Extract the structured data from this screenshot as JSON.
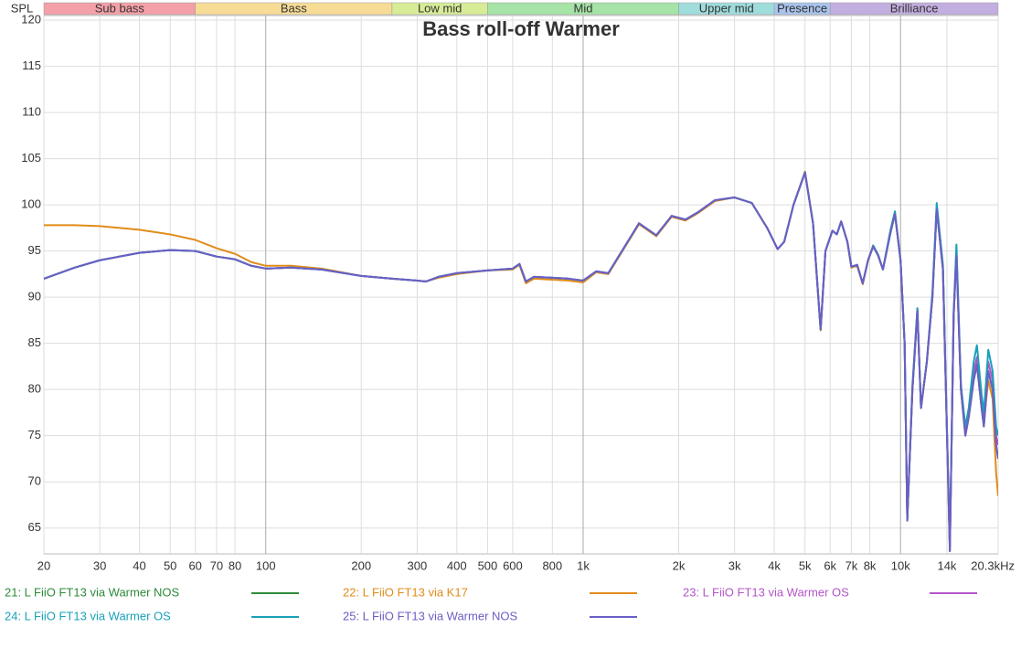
{
  "chart_data": {
    "type": "line",
    "title": "Bass roll-off Warmer",
    "y_label": "SPL",
    "xscale": "log",
    "xlim": [
      20,
      20300
    ],
    "ylim": [
      62.2,
      120.5
    ],
    "xticks": [
      20,
      30,
      40,
      50,
      60,
      70,
      80,
      100,
      200,
      300,
      400,
      500,
      600,
      800,
      {
        "value": 1000,
        "label": "1k"
      },
      {
        "value": 2000,
        "label": "2k"
      },
      {
        "value": 3000,
        "label": "3k"
      },
      {
        "value": 4000,
        "label": "4k"
      },
      {
        "value": 5000,
        "label": "5k"
      },
      {
        "value": 6000,
        "label": "6k"
      },
      {
        "value": 7000,
        "label": "7k"
      },
      {
        "value": 8000,
        "label": "8k"
      },
      {
        "value": 10000,
        "label": "10k"
      },
      {
        "value": 14000,
        "label": "14k"
      },
      {
        "value": 20300,
        "label": "20.3kHz"
      }
    ],
    "yticks": [
      65,
      70,
      75,
      80,
      85,
      90,
      95,
      100,
      105,
      110,
      115,
      120
    ],
    "grid": true,
    "bands": [
      {
        "label": "Sub bass",
        "from": 20,
        "to": 60,
        "color": "#f4a0a8"
      },
      {
        "label": "Bass",
        "from": 60,
        "to": 250,
        "color": "#f7dc96"
      },
      {
        "label": "Low mid",
        "from": 250,
        "to": 500,
        "color": "#d8ec98"
      },
      {
        "label": "Mid",
        "from": 500,
        "to": 2000,
        "color": "#a6e3a6"
      },
      {
        "label": "Upper mid",
        "from": 2000,
        "to": 4000,
        "color": "#9fdcdc"
      },
      {
        "label": "Presence",
        "from": 4000,
        "to": 6000,
        "color": "#a9c4ec"
      },
      {
        "label": "Brilliance",
        "from": 6000,
        "to": 20300,
        "color": "#c3aee0"
      }
    ],
    "x": [
      20,
      25,
      30,
      40,
      50,
      60,
      70,
      80,
      90,
      100,
      120,
      150,
      200,
      250,
      300,
      320,
      350,
      400,
      500,
      600,
      630,
      660,
      700,
      800,
      900,
      1000,
      1100,
      1200,
      1500,
      1700,
      1900,
      2100,
      2300,
      2600,
      3000,
      3400,
      3800,
      4100,
      4300,
      4600,
      5000,
      5300,
      5600,
      5800,
      6100,
      6300,
      6500,
      6800,
      7000,
      7300,
      7600,
      7900,
      8200,
      8500,
      8800,
      9300,
      9600,
      10000,
      10300,
      10500,
      10900,
      11300,
      11600,
      12100,
      12600,
      13000,
      13600,
      14300,
      14700,
      15000,
      15500,
      16000,
      16400,
      17000,
      17400,
      18000,
      18300,
      18900,
      19500,
      20000,
      20300
    ],
    "series": [
      {
        "name": "21: L FiiO FT13 via Warmer NOS",
        "color": "#2e8b3a",
        "values": [
          92,
          93.2,
          94,
          94.8,
          95.1,
          95,
          94.4,
          94.1,
          93.4,
          93.1,
          93.2,
          93,
          92.3,
          92,
          91.8,
          91.7,
          92.2,
          92.6,
          92.9,
          93.1,
          93.6,
          91.7,
          92.2,
          92.1,
          92,
          91.8,
          92.8,
          92.6,
          98,
          96.7,
          98.8,
          98.4,
          99.2,
          100.5,
          100.8,
          100.2,
          97.5,
          95.2,
          96,
          100,
          103.5,
          98,
          86.5,
          95,
          97.2,
          96.8,
          98.2,
          96,
          93.3,
          93.5,
          91.5,
          94,
          95.5,
          94.5,
          93,
          97,
          99,
          94,
          85,
          65.8,
          80,
          88.5,
          78,
          83,
          90,
          99.5,
          93,
          62.5,
          88,
          94.5,
          80,
          75,
          77,
          81,
          82.7,
          78,
          76,
          82,
          80,
          74,
          72.5
        ]
      },
      {
        "name": "22: L FiiO FT13 via K17",
        "color": "#e08c1a",
        "values": [
          97.8,
          97.8,
          97.7,
          97.3,
          96.8,
          96.2,
          95.3,
          94.7,
          93.8,
          93.4,
          93.4,
          93.1,
          92.3,
          92,
          91.8,
          91.7,
          92.1,
          92.5,
          92.9,
          93,
          93.5,
          91.5,
          92,
          91.9,
          91.8,
          91.6,
          92.7,
          92.5,
          97.9,
          96.6,
          98.7,
          98.3,
          99.1,
          100.4,
          100.8,
          100.2,
          97.5,
          95.2,
          96,
          100,
          103.6,
          98,
          86.4,
          95,
          97.2,
          96.8,
          98.2,
          96,
          93.2,
          93.4,
          91.4,
          94,
          95.6,
          94.6,
          93,
          97.2,
          99.2,
          94,
          85,
          66,
          80,
          88.8,
          78,
          83,
          90,
          99.8,
          93,
          63,
          88,
          95,
          80,
          75.5,
          77,
          81.5,
          82.8,
          78.5,
          76.5,
          81,
          79,
          71,
          68.5
        ]
      },
      {
        "name": "23: L FiiO FT13 via Warmer OS",
        "color": "#b455c9",
        "values": [
          92,
          93.2,
          94,
          94.8,
          95.1,
          95,
          94.4,
          94.1,
          93.4,
          93.1,
          93.2,
          93,
          92.3,
          92,
          91.8,
          91.7,
          92.2,
          92.6,
          92.9,
          93.1,
          93.6,
          91.7,
          92.2,
          92.1,
          92,
          91.8,
          92.8,
          92.6,
          98,
          96.7,
          98.8,
          98.4,
          99.2,
          100.5,
          100.8,
          100.2,
          97.5,
          95.2,
          96,
          100,
          103.5,
          98,
          86.5,
          95,
          97.2,
          96.8,
          98.2,
          96,
          93.3,
          93.5,
          91.5,
          94,
          95.5,
          94.5,
          93,
          97.2,
          99.1,
          94,
          85,
          66,
          80,
          88.6,
          78,
          83,
          90,
          99.8,
          93,
          63,
          88,
          95,
          80,
          75.5,
          77.5,
          82,
          83.5,
          79,
          77,
          83,
          81,
          75,
          74
        ]
      },
      {
        "name": "24: L FiiO FT13 via Warmer OS",
        "color": "#1aa0b8",
        "values": [
          92,
          93.2,
          94,
          94.8,
          95.1,
          95,
          94.4,
          94.1,
          93.4,
          93.1,
          93.2,
          93,
          92.3,
          92,
          91.8,
          91.7,
          92.2,
          92.6,
          92.9,
          93.1,
          93.6,
          91.7,
          92.2,
          92.1,
          92,
          91.8,
          92.8,
          92.6,
          98,
          96.7,
          98.8,
          98.4,
          99.2,
          100.5,
          100.8,
          100.2,
          97.5,
          95.2,
          96,
          100,
          103.5,
          98,
          86.5,
          95,
          97.2,
          96.8,
          98.2,
          96,
          93.3,
          93.5,
          91.5,
          94,
          95.6,
          94.6,
          93,
          97.3,
          99.3,
          94,
          85,
          66,
          80.5,
          88.8,
          78,
          83,
          90.5,
          100.2,
          93.5,
          63,
          88.5,
          95.7,
          80.5,
          76,
          78,
          83,
          84.8,
          79.5,
          77.5,
          84.3,
          82,
          76,
          75
        ]
      },
      {
        "name": "25: L FiiO FT13 via Warmer NOS",
        "color": "#6a5fc4",
        "values": [
          92,
          93.2,
          94,
          94.8,
          95.1,
          95,
          94.4,
          94.1,
          93.4,
          93.1,
          93.2,
          93,
          92.3,
          92,
          91.8,
          91.7,
          92.2,
          92.6,
          92.9,
          93.1,
          93.6,
          91.7,
          92.2,
          92.1,
          92,
          91.8,
          92.8,
          92.6,
          98,
          96.7,
          98.8,
          98.4,
          99.2,
          100.5,
          100.8,
          100.2,
          97.5,
          95.2,
          96,
          100,
          103.5,
          98,
          86.5,
          95,
          97.2,
          96.8,
          98.2,
          96,
          93.3,
          93.5,
          91.5,
          94,
          95.5,
          94.5,
          93,
          97,
          99,
          94,
          85,
          65.8,
          80,
          88.5,
          78,
          83,
          90,
          99.5,
          93,
          62.5,
          88,
          94.5,
          80,
          75,
          77,
          81,
          82.7,
          78,
          76,
          82,
          80,
          74,
          72.5
        ]
      }
    ]
  }
}
